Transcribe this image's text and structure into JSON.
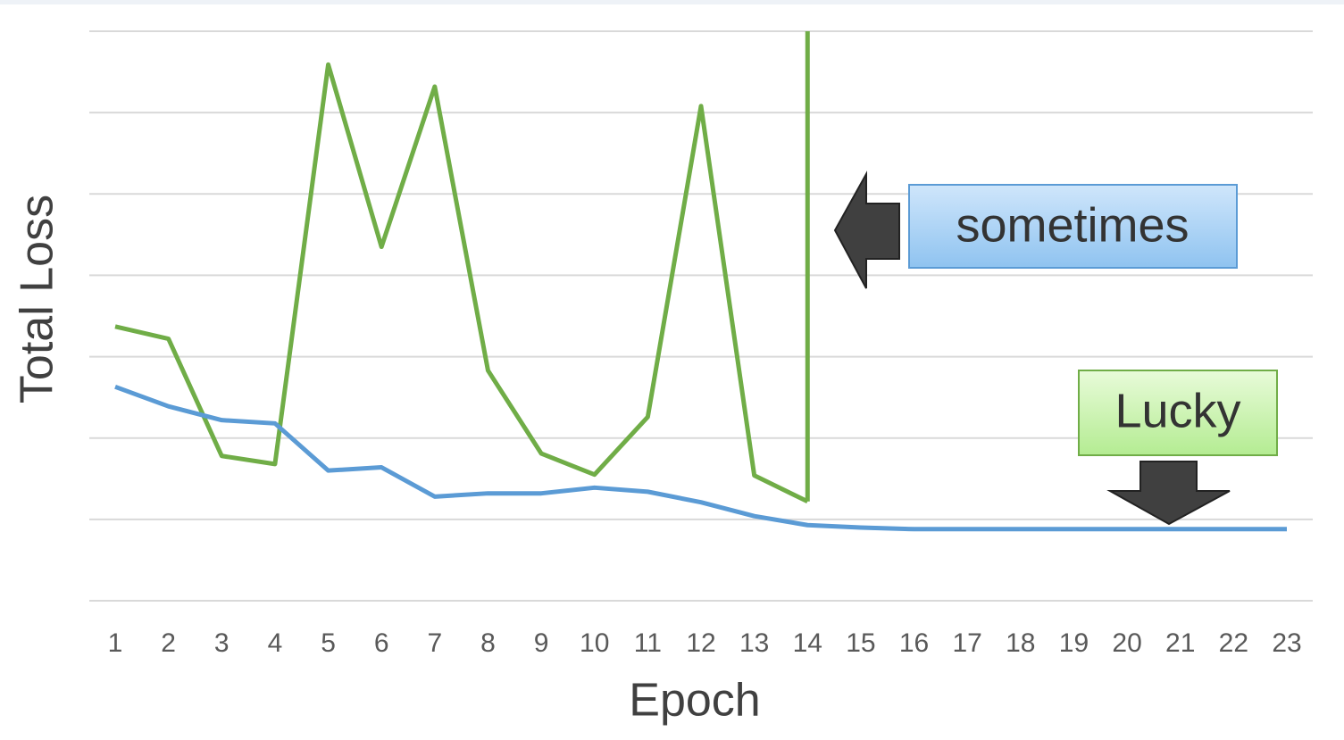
{
  "chart_data": {
    "type": "line",
    "x_label": "Epoch",
    "y_label": "Total Loss",
    "categories": [
      "1",
      "2",
      "3",
      "4",
      "5",
      "6",
      "7",
      "8",
      "9",
      "10",
      "11",
      "12",
      "13",
      "14",
      "15",
      "16",
      "17",
      "18",
      "19",
      "20",
      "21",
      "22",
      "23"
    ],
    "series": [
      {
        "color": "#70ad47",
        "values": [
          3.37,
          3.22,
          1.78,
          1.68,
          6.59,
          4.35,
          6.32,
          2.83,
          1.81,
          1.55,
          2.26,
          6.08,
          1.54,
          1.22,
          null,
          null,
          null,
          null,
          null,
          null,
          null,
          null,
          null
        ]
      },
      {
        "color": "#5b9bd5",
        "values": [
          2.63,
          2.39,
          2.22,
          2.18,
          1.6,
          1.64,
          1.28,
          1.32,
          1.32,
          1.39,
          1.34,
          1.21,
          1.04,
          0.93,
          0.9,
          0.88,
          0.88,
          0.88,
          0.88,
          0.88,
          0.88,
          0.88,
          0.88
        ]
      }
    ],
    "ylim": [
      0,
      7
    ],
    "yticks": [
      0,
      1,
      2,
      3,
      4,
      5,
      6,
      7
    ],
    "grid": true,
    "annotations": [
      "sometimes",
      "Lucky"
    ]
  }
}
